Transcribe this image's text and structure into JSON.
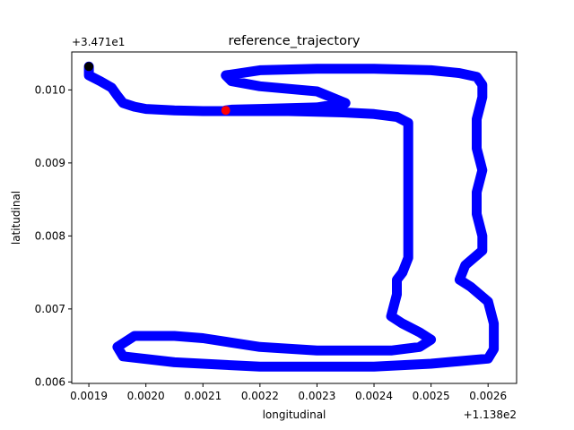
{
  "chart_data": {
    "type": "line",
    "title": "reference_trajectory",
    "xlabel": "longitudinal",
    "ylabel": "latitudinal",
    "x_offset_label": "+1.138e2",
    "y_offset_label": "+3.471e1",
    "xlim": [
      0.00187,
      0.00265
    ],
    "ylim": [
      0.00598,
      0.01052
    ],
    "x_ticks": [
      0.0019,
      0.002,
      0.0021,
      0.0022,
      0.0023,
      0.0024,
      0.0025,
      0.0026
    ],
    "x_tick_labels": [
      "0.0019",
      "0.0020",
      "0.0021",
      "0.0022",
      "0.0023",
      "0.0024",
      "0.0025",
      "0.0026"
    ],
    "y_ticks": [
      0.006,
      0.007,
      0.008,
      0.009,
      0.01
    ],
    "y_tick_labels": [
      "0.006",
      "0.007",
      "0.008",
      "0.009",
      "0.010"
    ],
    "grid": false,
    "series": [
      {
        "color": "#0000ff",
        "x": [
          0.0019,
          0.0019,
          0.00192,
          0.00194,
          0.00195,
          0.00196,
          0.00198,
          0.002,
          0.00205,
          0.0021,
          0.00215,
          0.0022,
          0.00225,
          0.0023,
          0.00235,
          0.0024,
          0.00244,
          0.00246,
          0.00246,
          0.00246,
          0.00246,
          0.00246,
          0.00246,
          0.00245,
          0.00244,
          0.00244,
          0.00243,
          0.00245,
          0.00248,
          0.0025,
          0.00248,
          0.00243,
          0.0023,
          0.0022,
          0.0021,
          0.00205,
          0.00198,
          0.00195,
          0.00196,
          0.00205,
          0.0022,
          0.0024,
          0.0025,
          0.0026,
          0.00261,
          0.00261,
          0.0026,
          0.00257,
          0.00255,
          0.00256,
          0.00259,
          0.00259,
          0.00258,
          0.00258,
          0.00259,
          0.00258,
          0.00258,
          0.00259,
          0.00259,
          0.00258,
          0.00255,
          0.0025,
          0.0024,
          0.0023,
          0.0022,
          0.00214,
          0.00215,
          0.0022,
          0.0023,
          0.00235,
          0.0023,
          0.0022,
          0.00215,
          0.00214
        ],
        "y": [
          0.01032,
          0.0102,
          0.01012,
          0.01003,
          0.00992,
          0.00982,
          0.00977,
          0.00974,
          0.00972,
          0.00971,
          0.00971,
          0.00971,
          0.00971,
          0.0097,
          0.00969,
          0.00967,
          0.00963,
          0.00955,
          0.0092,
          0.0088,
          0.0084,
          0.008,
          0.0077,
          0.0075,
          0.0074,
          0.0072,
          0.0069,
          0.0068,
          0.00668,
          0.00658,
          0.00648,
          0.00643,
          0.00643,
          0.00648,
          0.0066,
          0.00663,
          0.00663,
          0.00648,
          0.00635,
          0.00627,
          0.00621,
          0.00621,
          0.00625,
          0.00632,
          0.00645,
          0.0068,
          0.0071,
          0.0073,
          0.0074,
          0.0076,
          0.0078,
          0.008,
          0.0083,
          0.0086,
          0.0089,
          0.0092,
          0.0096,
          0.0099,
          0.01007,
          0.01018,
          0.01023,
          0.01027,
          0.01029,
          0.01029,
          0.01027,
          0.0102,
          0.01012,
          0.01005,
          0.00998,
          0.00982,
          0.00976,
          0.00974,
          0.00973,
          0.00972
        ]
      }
    ],
    "markers": [
      {
        "x": 0.0019,
        "y": 0.01032,
        "color": "#000000"
      },
      {
        "x": 0.00214,
        "y": 0.00972,
        "color": "#ff0000"
      }
    ]
  }
}
